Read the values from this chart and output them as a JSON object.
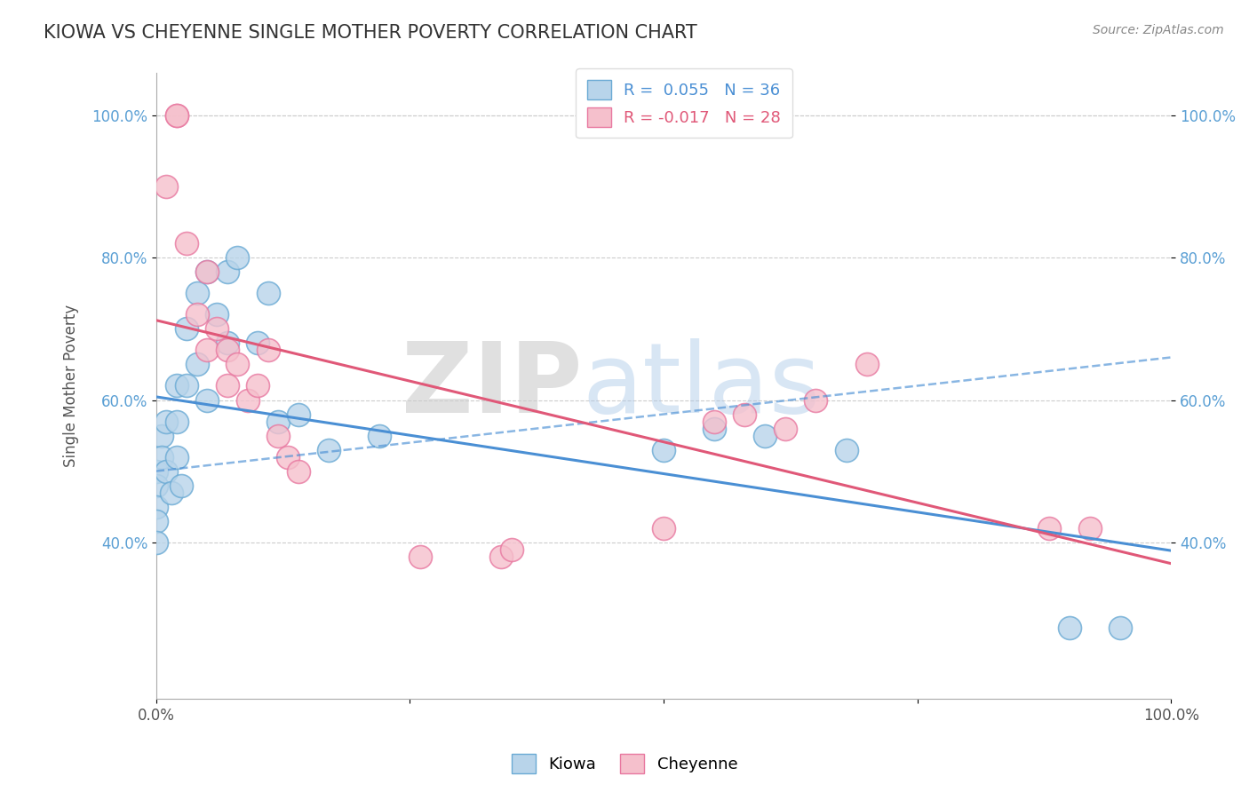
{
  "title": "KIOWA VS CHEYENNE SINGLE MOTHER POVERTY CORRELATION CHART",
  "source": "Source: ZipAtlas.com",
  "ylabel": "Single Mother Poverty",
  "xlim": [
    0,
    1
  ],
  "ylim": [
    0.18,
    1.06
  ],
  "xticks": [
    0.0,
    0.25,
    0.5,
    0.75,
    1.0
  ],
  "xtick_labels": [
    "0.0%",
    "",
    "",
    "",
    "100.0%"
  ],
  "yticks": [
    0.4,
    0.6,
    0.8,
    1.0
  ],
  "ytick_labels": [
    "40.0%",
    "60.0%",
    "80.0%",
    "100.0%"
  ],
  "kiowa_R": 0.055,
  "kiowa_N": 36,
  "cheyenne_R": -0.017,
  "cheyenne_N": 28,
  "kiowa_color": "#b8d4ea",
  "kiowa_edge_color": "#6aaad4",
  "cheyenne_color": "#f5c0cc",
  "cheyenne_edge_color": "#e878a0",
  "trend_kiowa_color": "#4a8fd4",
  "trend_cheyenne_color": "#e05878",
  "watermark_zip": "ZIP",
  "watermark_atlas": "atlas",
  "kiowa_x": [
    0.0,
    0.0,
    0.0,
    0.0,
    0.0,
    0.005,
    0.005,
    0.01,
    0.01,
    0.015,
    0.02,
    0.02,
    0.02,
    0.025,
    0.03,
    0.03,
    0.04,
    0.04,
    0.05,
    0.05,
    0.06,
    0.07,
    0.07,
    0.08,
    0.1,
    0.11,
    0.12,
    0.14,
    0.17,
    0.22,
    0.5,
    0.55,
    0.6,
    0.68,
    0.9,
    0.95
  ],
  "kiowa_y": [
    0.5,
    0.48,
    0.45,
    0.43,
    0.4,
    0.55,
    0.52,
    0.57,
    0.5,
    0.47,
    0.62,
    0.57,
    0.52,
    0.48,
    0.7,
    0.62,
    0.75,
    0.65,
    0.78,
    0.6,
    0.72,
    0.78,
    0.68,
    0.8,
    0.68,
    0.75,
    0.57,
    0.58,
    0.53,
    0.55,
    0.53,
    0.56,
    0.55,
    0.53,
    0.28,
    0.28
  ],
  "cheyenne_x": [
    0.01,
    0.02,
    0.02,
    0.03,
    0.04,
    0.05,
    0.05,
    0.06,
    0.07,
    0.07,
    0.08,
    0.09,
    0.1,
    0.11,
    0.12,
    0.13,
    0.14,
    0.26,
    0.34,
    0.35,
    0.5,
    0.55,
    0.58,
    0.62,
    0.65,
    0.7,
    0.88,
    0.92
  ],
  "cheyenne_y": [
    0.9,
    1.0,
    1.0,
    0.82,
    0.72,
    0.78,
    0.67,
    0.7,
    0.67,
    0.62,
    0.65,
    0.6,
    0.62,
    0.67,
    0.55,
    0.52,
    0.5,
    0.38,
    0.38,
    0.39,
    0.42,
    0.57,
    0.58,
    0.56,
    0.6,
    0.65,
    0.42,
    0.42
  ]
}
